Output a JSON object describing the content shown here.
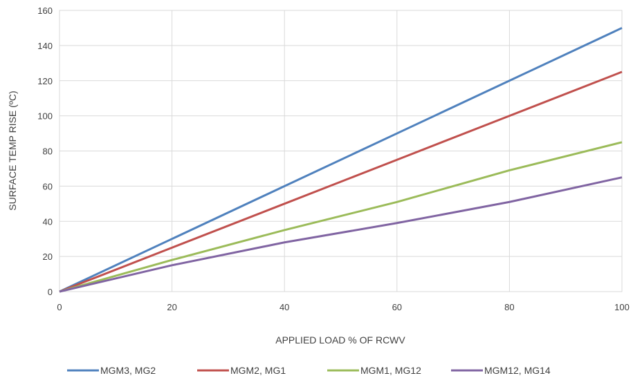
{
  "chart_data": {
    "type": "line",
    "title": "",
    "xlabel": "APPLIED LOAD % OF RCWV",
    "ylabel": "SURFACE TEMP RISE (ºC)",
    "xlim": [
      0,
      100
    ],
    "ylim": [
      0,
      160
    ],
    "x_ticks": [
      0,
      20,
      40,
      60,
      80,
      100
    ],
    "y_ticks": [
      0,
      20,
      40,
      60,
      80,
      100,
      120,
      140,
      160
    ],
    "grid": true,
    "legend_position": "bottom",
    "x": [
      0,
      20,
      40,
      60,
      80,
      100
    ],
    "series": [
      {
        "name": "MGM3, MG2",
        "color": "#4F81BD",
        "values": [
          0,
          30,
          60,
          90,
          120,
          150
        ]
      },
      {
        "name": "MGM2, MG1",
        "color": "#C0504D",
        "values": [
          0,
          25,
          50,
          75,
          100,
          125
        ]
      },
      {
        "name": "MGM1, MG12",
        "color": "#9BBB59",
        "values": [
          0,
          18,
          35,
          51,
          69,
          85
        ]
      },
      {
        "name": "MGM12, MG14",
        "color": "#8064A2",
        "values": [
          0,
          15,
          28,
          39,
          51,
          65
        ]
      }
    ]
  }
}
